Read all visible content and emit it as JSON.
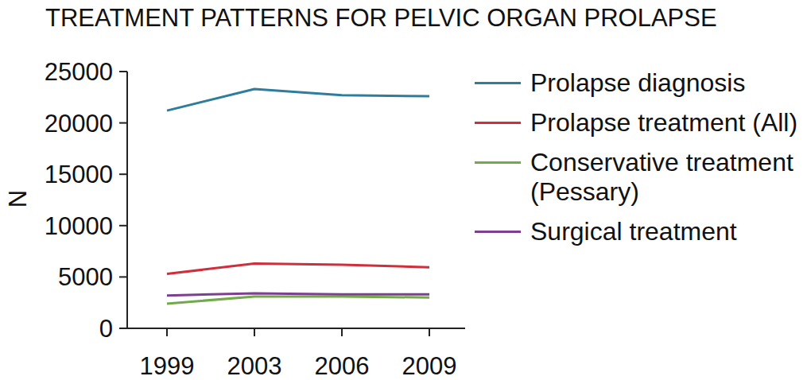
{
  "chart_data": {
    "type": "line",
    "title": "TREATMENT PATTERNS FOR PELVIC ORGAN PROLAPSE",
    "y_label": "N",
    "categories": [
      "1999",
      "2003",
      "2006",
      "2009"
    ],
    "series": [
      {
        "name": "Prolapse diagnosis",
        "color": "#2f7d9c",
        "values": [
          21200,
          23300,
          22700,
          22600
        ]
      },
      {
        "name": "Prolapse treatment (All)",
        "color": "#cf2f3c",
        "values": [
          5300,
          6300,
          6200,
          5950
        ]
      },
      {
        "name": "Conservative treatment (Pessary)",
        "color": "#72a94a",
        "values": [
          2400,
          3100,
          3100,
          3000
        ]
      },
      {
        "name": "Surgical treatment",
        "color": "#7d3f8f",
        "values": [
          3200,
          3400,
          3300,
          3300
        ]
      }
    ],
    "ylim": [
      0,
      25000
    ],
    "yticks": [
      0,
      5000,
      10000,
      15000,
      20000,
      25000
    ],
    "grid": false,
    "legend": "right"
  }
}
